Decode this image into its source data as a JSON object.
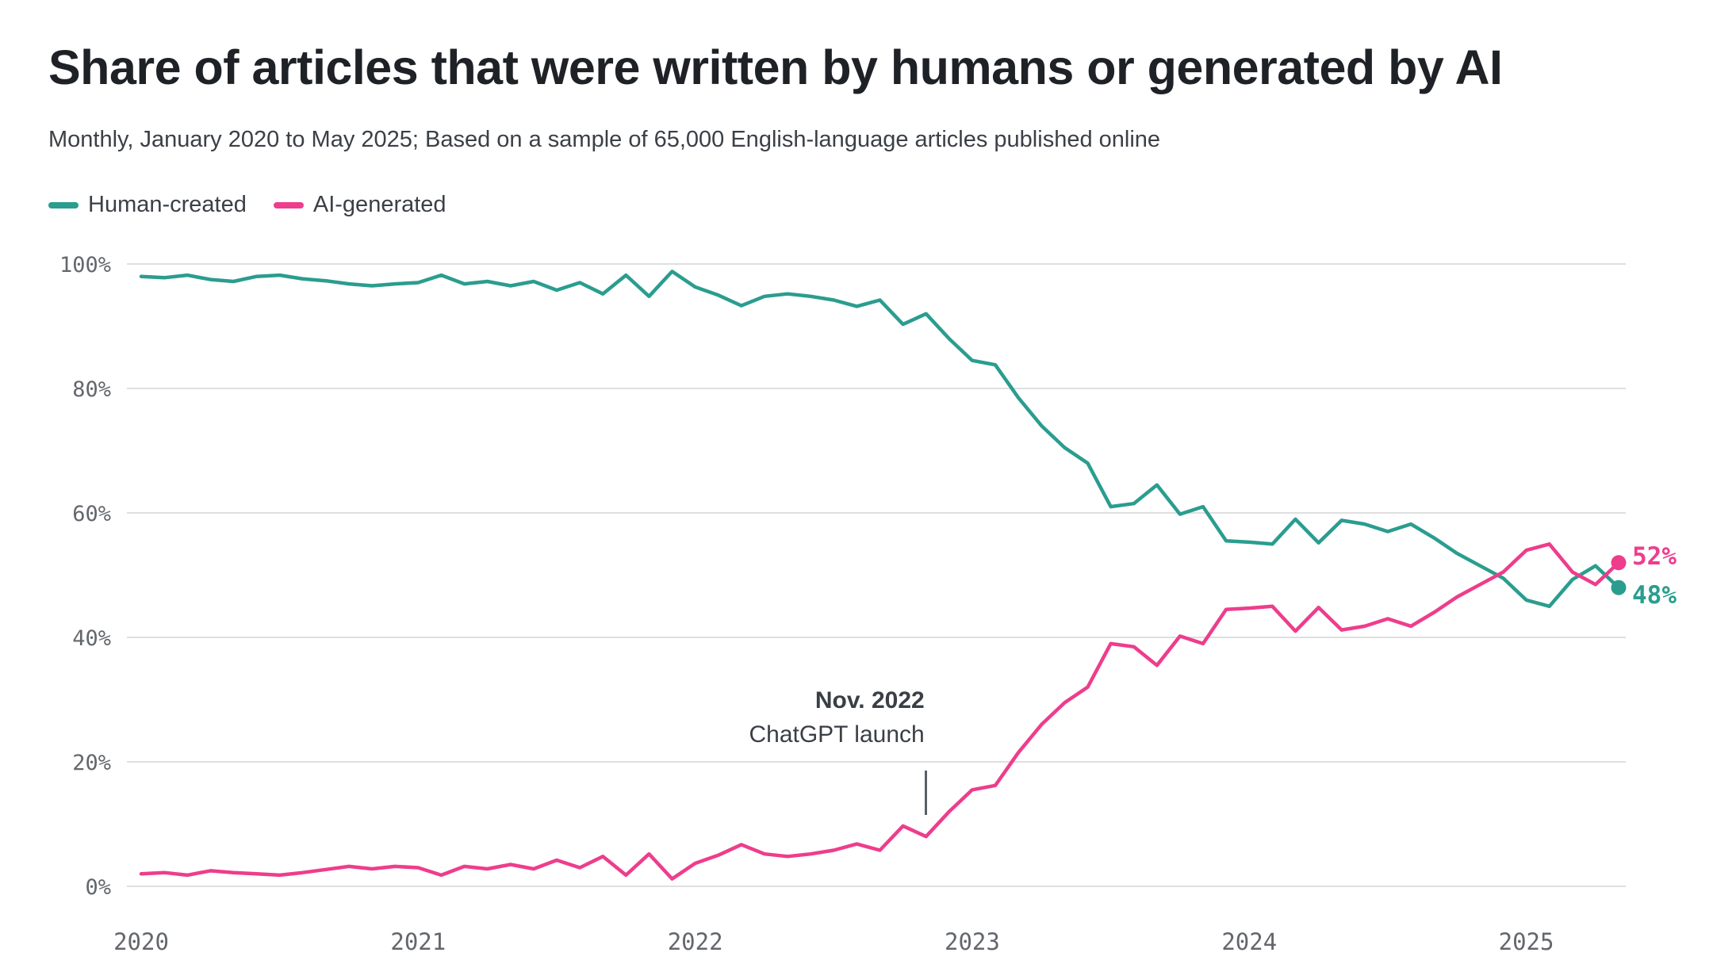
{
  "title": "Share of articles that were written by humans or generated by AI",
  "subtitle": "Monthly, January 2020 to May 2025; Based on a sample of 65,000 English-language articles published online",
  "legend": [
    {
      "label": "Human-created",
      "color": "#2a9d8f"
    },
    {
      "label": "AI-generated",
      "color": "#ee3d8c"
    }
  ],
  "annotation": {
    "title": "Nov. 2022",
    "text": "ChatGPT launch",
    "month_index": 34
  },
  "end_labels": [
    {
      "text": "52%",
      "series": "AI-generated",
      "color": "#ee3d8c"
    },
    {
      "text": "48%",
      "series": "Human-created",
      "color": "#2a9d8f"
    }
  ],
  "chart_data": {
    "type": "line",
    "title": "Share of articles that were written by humans or generated by AI",
    "x_start": "2020-01",
    "x_end": "2025-05",
    "x_tick_labels": [
      "2020",
      "2021",
      "2022",
      "2023",
      "2024",
      "2025"
    ],
    "y_tick_labels": [
      "0%",
      "20%",
      "40%",
      "60%",
      "80%",
      "100%"
    ],
    "y_tick_values": [
      0,
      20,
      40,
      60,
      80,
      100
    ],
    "ylim": [
      0,
      100
    ],
    "grid": "horizontal",
    "legend_position": "top-left",
    "series": [
      {
        "name": "Human-created",
        "color": "#2a9d8f",
        "values": [
          98,
          97.8,
          98.2,
          97.5,
          97.2,
          98,
          98.2,
          97.6,
          97.3,
          96.8,
          96.5,
          96.8,
          97,
          98.2,
          96.8,
          97.2,
          96.5,
          97.2,
          95.8,
          97,
          95.2,
          98.2,
          94.8,
          98.8,
          96.3,
          95,
          93.3,
          94.8,
          95.2,
          94.8,
          94.2,
          93.2,
          94.2,
          90.3,
          92,
          88,
          84.5,
          83.8,
          78.5,
          74,
          70.5,
          68,
          61,
          61.5,
          64.5,
          59.8,
          61,
          55.5,
          55.3,
          55,
          59,
          55.2,
          58.8,
          58.2,
          57,
          58.2,
          56,
          53.5,
          51.5,
          49.5,
          46,
          45,
          49.3,
          51.5,
          48
        ]
      },
      {
        "name": "AI-generated",
        "color": "#ee3d8c",
        "values": [
          2,
          2.2,
          1.8,
          2.5,
          2.2,
          2,
          1.8,
          2.2,
          2.7,
          3.2,
          2.8,
          3.2,
          3,
          1.8,
          3.2,
          2.8,
          3.5,
          2.8,
          4.2,
          3,
          4.8,
          1.8,
          5.2,
          1.2,
          3.7,
          5,
          6.7,
          5.2,
          4.8,
          5.2,
          5.8,
          6.8,
          5.8,
          9.7,
          8,
          12,
          15.5,
          16.2,
          21.5,
          26,
          29.5,
          32,
          39,
          38.5,
          35.5,
          40.2,
          39,
          44.5,
          44.7,
          45,
          41,
          44.8,
          41.2,
          41.8,
          43,
          41.8,
          44,
          46.5,
          48.5,
          50.5,
          54,
          55,
          50.5,
          48.5,
          52
        ]
      }
    ]
  }
}
